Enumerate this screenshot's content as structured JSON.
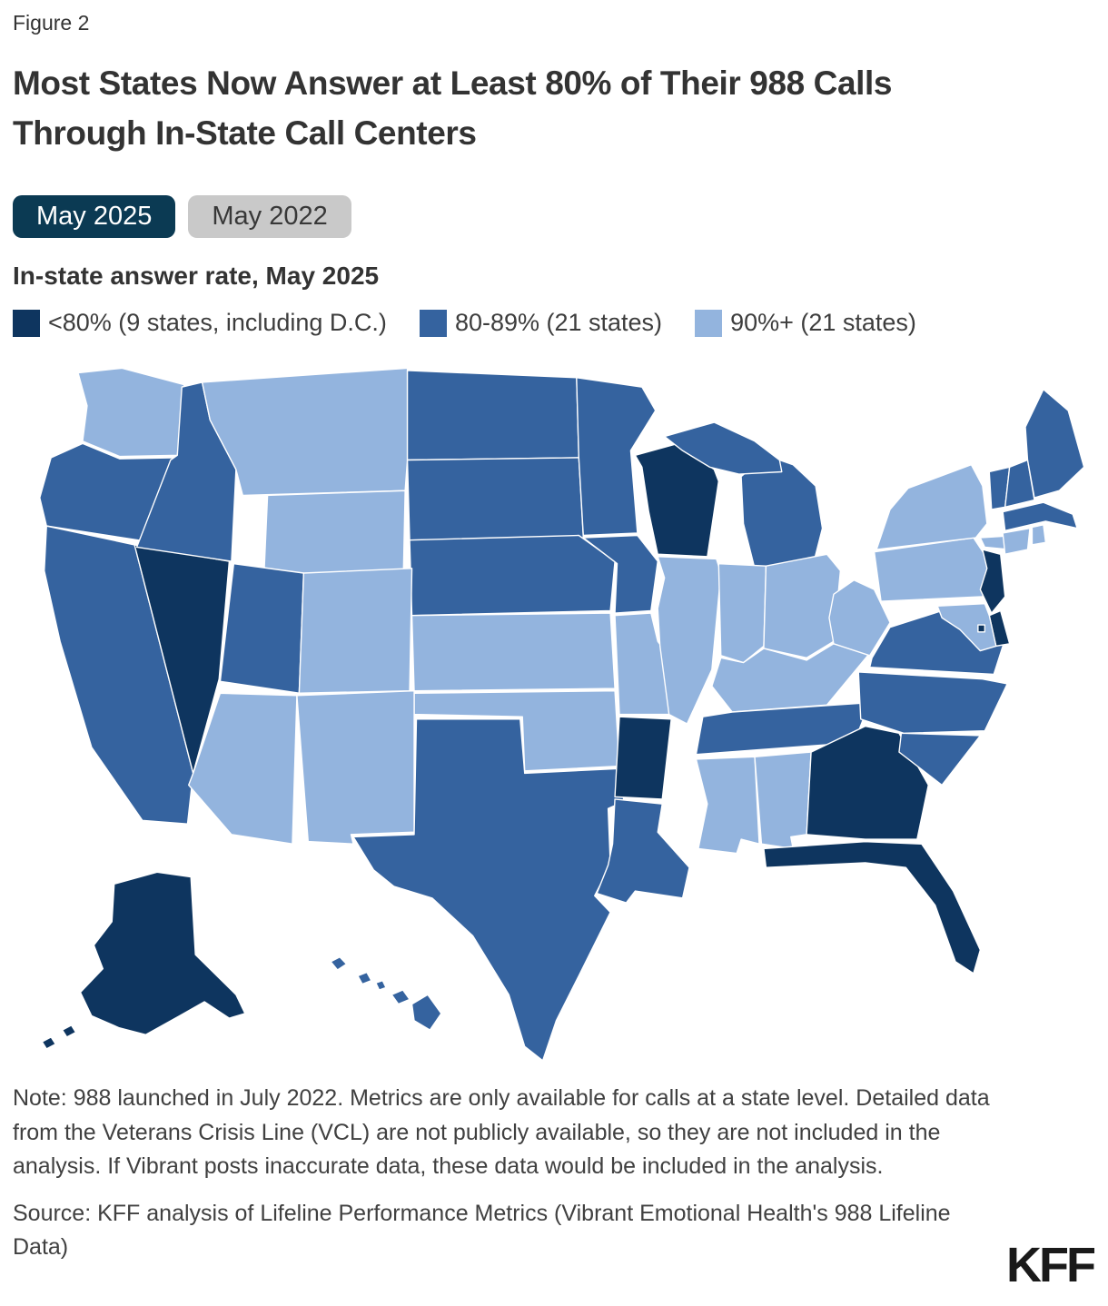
{
  "figure_label": "Figure 2",
  "title": "Most States Now Answer at Least 80% of Their 988 Calls Through In-State Call Centers",
  "toggles": [
    {
      "label": "May 2025",
      "selected": true,
      "bg": "#0b3a53",
      "fg": "#ffffff"
    },
    {
      "label": "May 2022",
      "selected": false,
      "bg": "#c9c9c9",
      "fg": "#383838"
    }
  ],
  "subtitle": "In-state answer rate, May 2025",
  "note": "Note: 988 launched in July 2022. Metrics are only available for calls at a state level. Detailed data from the Veterans Crisis Line (VCL) are not publicly available, so they are not included in the analysis. If Vibrant posts inaccurate data, these data would be included in the analysis.",
  "source": "Source: KFF analysis of Lifeline Performance Metrics (Vibrant Emotional Health's 988 Lifeline Data)",
  "logo": "KFF",
  "chart_data": {
    "type": "choropleth",
    "title": "Most States Now Answer at Least 80% of Their 988 Calls Through In-State Call Centers",
    "subtitle": "In-state answer rate, May 2025",
    "legend_position": "top",
    "legend": [
      {
        "key": "lt80",
        "label": "<80% (9 states, including D.C.)",
        "color": "#0e355f"
      },
      {
        "key": "80to89",
        "label": "80-89% (21 states)",
        "color": "#35639f"
      },
      {
        "key": "90plus",
        "label": "90%+ (21 states)",
        "color": "#93b4de"
      }
    ],
    "states": {
      "WA": "90plus",
      "OR": "80to89",
      "CA": "80to89",
      "NV": "lt80",
      "ID": "80to89",
      "MT": "90plus",
      "WY": "90plus",
      "UT": "80to89",
      "CO": "90plus",
      "AZ": "90plus",
      "NM": "90plus",
      "ND": "80to89",
      "SD": "80to89",
      "NE": "80to89",
      "KS": "90plus",
      "OK": "90plus",
      "TX": "80to89",
      "MN": "80to89",
      "IA": "80to89",
      "MO": "90plus",
      "AR": "lt80",
      "LA": "80to89",
      "WI": "lt80",
      "IL": "90plus",
      "MI": "80to89",
      "IN": "90plus",
      "OH": "90plus",
      "KY": "90plus",
      "TN": "80to89",
      "MS": "90plus",
      "AL": "90plus",
      "GA": "lt80",
      "FL": "lt80",
      "SC": "80to89",
      "NC": "80to89",
      "VA": "80to89",
      "WV": "90plus",
      "PA": "90plus",
      "NY": "90plus",
      "ME": "80to89",
      "VT": "80to89",
      "NH": "80to89",
      "MA": "80to89",
      "CT": "90plus",
      "RI": "90plus",
      "NJ": "lt80",
      "DE": "lt80",
      "MD": "90plus",
      "DC": "lt80",
      "AK": "lt80",
      "HI": "80to89"
    }
  }
}
